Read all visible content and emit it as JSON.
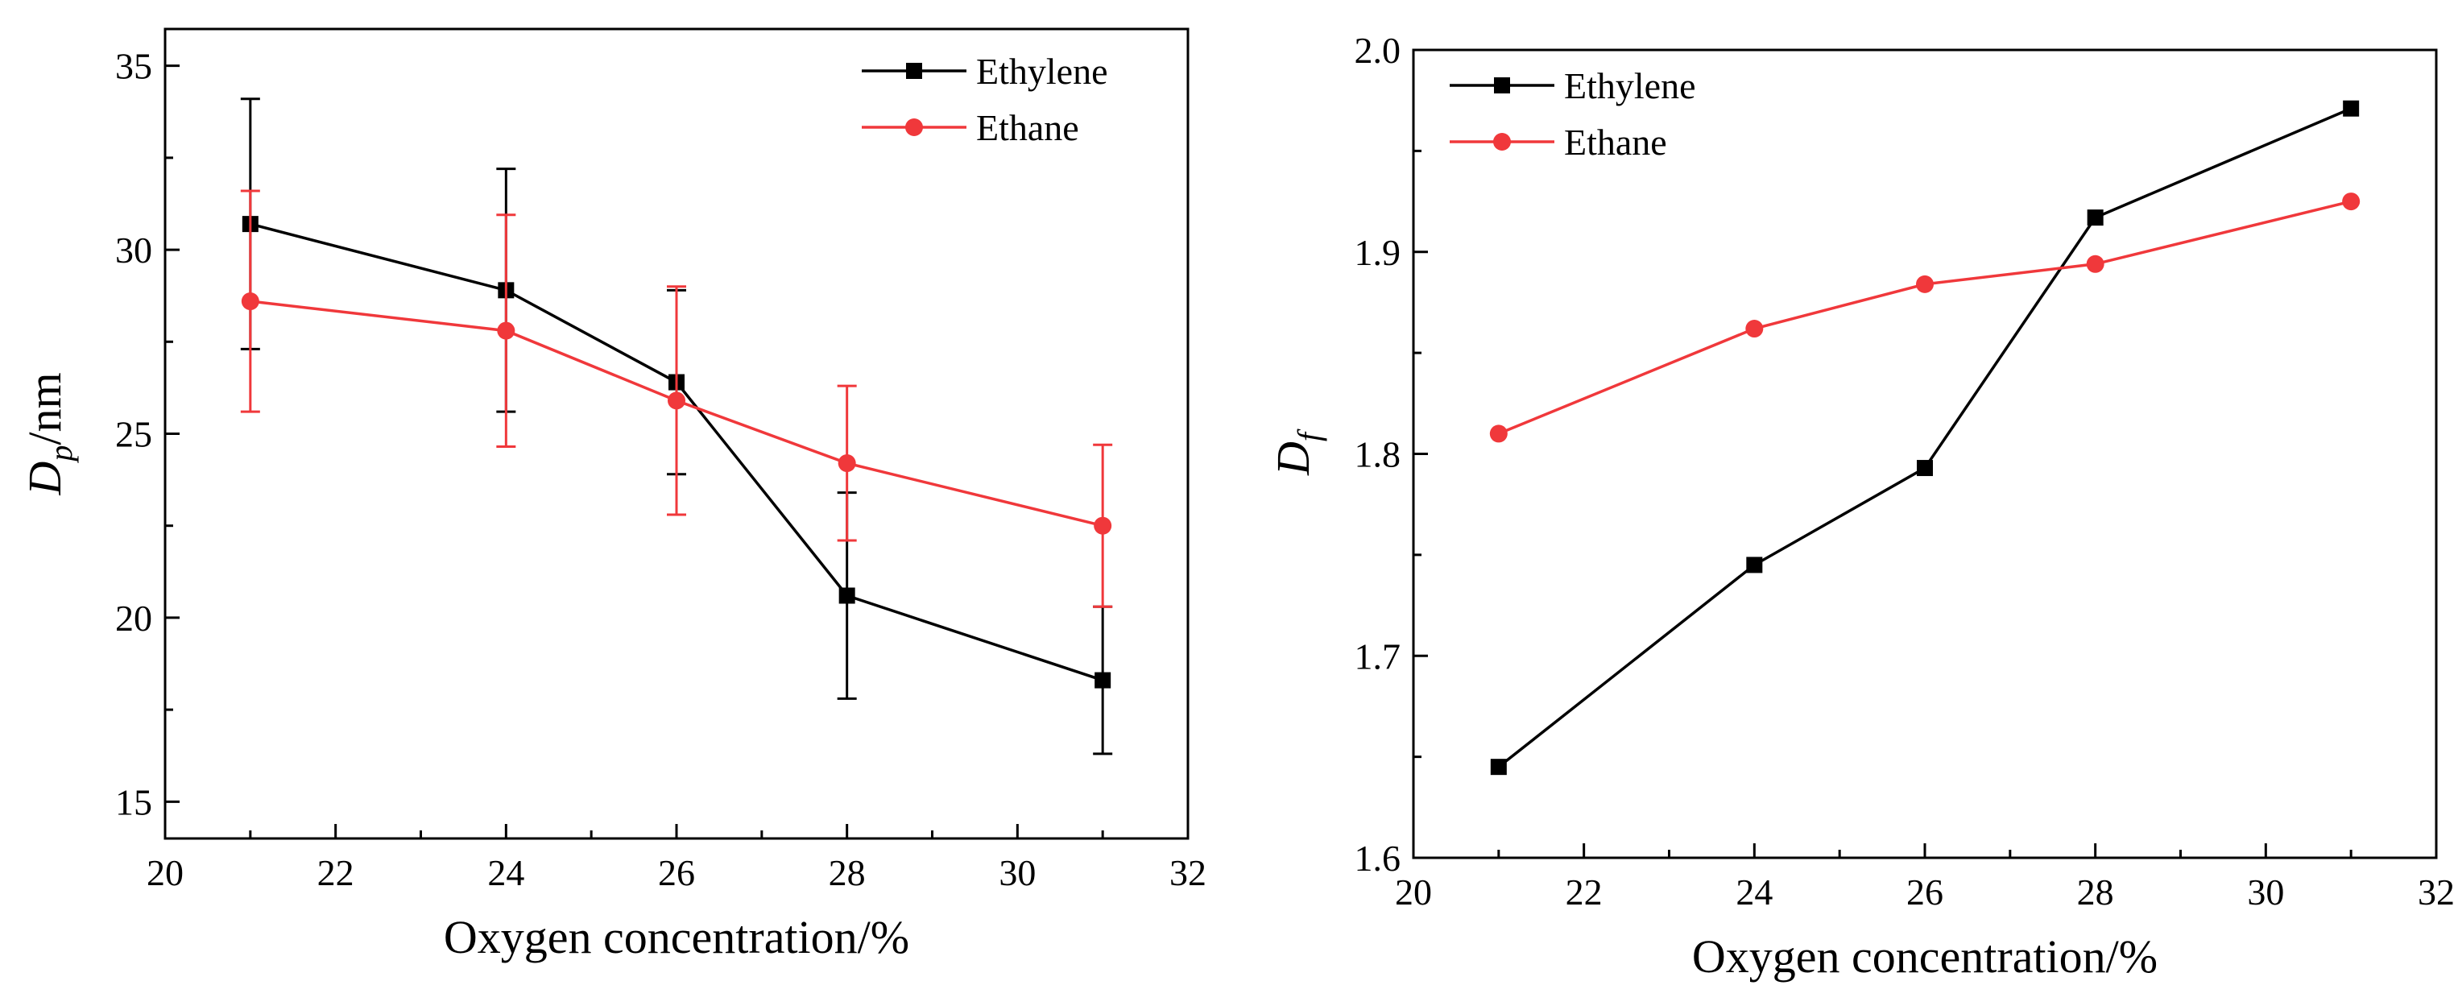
{
  "colors": {
    "ethylene": "#000000",
    "ethane": "#f0383b"
  },
  "chart_data": [
    {
      "type": "line",
      "title": "",
      "xlabel": "Oxygen concentration/%",
      "ylabel": {
        "main": "D",
        "sub": "p",
        "unit": "/nm"
      },
      "xlim": [
        20,
        32
      ],
      "ylim": [
        14,
        36
      ],
      "xticks": [
        20,
        22,
        24,
        26,
        28,
        30,
        32
      ],
      "yticks": [
        15,
        20,
        25,
        30,
        35
      ],
      "x": [
        21,
        24,
        26,
        28,
        31
      ],
      "legend_position": "top-right",
      "series": [
        {
          "name": "Ethylene",
          "marker": "square",
          "color": "#000000",
          "values": [
            30.7,
            28.9,
            26.4,
            20.6,
            18.3
          ],
          "error": [
            3.4,
            3.3,
            2.5,
            2.8,
            2.0
          ]
        },
        {
          "name": "Ethane",
          "marker": "circle",
          "color": "#f0383b",
          "values": [
            28.6,
            27.8,
            25.9,
            24.2,
            22.5
          ],
          "error": [
            3.0,
            3.15,
            3.1,
            2.1,
            2.2
          ]
        }
      ]
    },
    {
      "type": "line",
      "title": "",
      "xlabel": "Oxygen concentration/%",
      "ylabel": {
        "main": "D",
        "sub": "f",
        "unit": ""
      },
      "xlim": [
        20,
        32
      ],
      "ylim": [
        1.6,
        2.0
      ],
      "xticks": [
        20,
        22,
        24,
        26,
        28,
        30,
        32
      ],
      "yticks": [
        1.6,
        1.7,
        1.8,
        1.9,
        2.0
      ],
      "ytick_labels": [
        "1.6",
        "1.7",
        "1.8",
        "1.9",
        "2.0"
      ],
      "x": [
        21,
        24,
        26,
        28,
        31
      ],
      "legend_position": "top-left",
      "series": [
        {
          "name": "Ethylene",
          "marker": "square",
          "color": "#000000",
          "values": [
            1.645,
            1.745,
            1.793,
            1.917,
            1.971
          ]
        },
        {
          "name": "Ethane",
          "marker": "circle",
          "color": "#f0383b",
          "values": [
            1.81,
            1.862,
            1.884,
            1.894,
            1.925
          ]
        }
      ]
    }
  ]
}
